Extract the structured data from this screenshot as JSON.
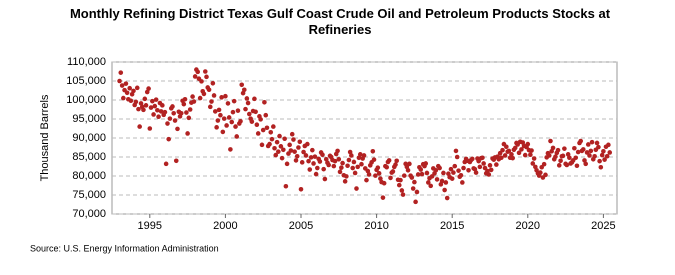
{
  "chart_data": {
    "type": "scatter",
    "title": "Monthly Refining District Texas Gulf Coast Crude Oil and Petroleum Products Stocks at Refineries",
    "y_label": "Thousand Barrels",
    "source": "Source: U.S. Energy Information Administration",
    "xlim": [
      1992.5,
      2025.9
    ],
    "xticks": [
      1995,
      2000,
      2005,
      2010,
      2015,
      2020,
      2025
    ],
    "ylim": [
      70000,
      110000
    ],
    "yticks": [
      {
        "value": 70000,
        "label": "70,000"
      },
      {
        "value": 75000,
        "label": "75,000"
      },
      {
        "value": 80000,
        "label": "80,000"
      },
      {
        "value": 85000,
        "label": "85,000"
      },
      {
        "value": 90000,
        "label": "90,000"
      },
      {
        "value": 95000,
        "label": "95,000"
      },
      {
        "value": 100000,
        "label": "100,000"
      },
      {
        "value": 105000,
        "label": "105,000"
      },
      {
        "value": 110000,
        "label": "110,000"
      }
    ],
    "grid": true,
    "color": "#b22222",
    "x": [
      1993.0,
      1993.08,
      1993.17,
      1993.25,
      1993.33,
      1993.42,
      1993.5,
      1993.58,
      1993.67,
      1993.75,
      1993.83,
      1993.92,
      1994.0,
      1994.08,
      1994.17,
      1994.25,
      1994.33,
      1994.42,
      1994.5,
      1994.58,
      1994.67,
      1994.75,
      1994.83,
      1994.92,
      1995.0,
      1995.08,
      1995.17,
      1995.25,
      1995.33,
      1995.42,
      1995.5,
      1995.58,
      1995.67,
      1995.75,
      1995.83,
      1995.92,
      1996.0,
      1996.08,
      1996.17,
      1996.25,
      1996.33,
      1996.42,
      1996.5,
      1996.58,
      1996.67,
      1996.75,
      1996.83,
      1996.92,
      1997.0,
      1997.08,
      1997.17,
      1997.25,
      1997.33,
      1997.42,
      1997.5,
      1997.58,
      1997.67,
      1997.75,
      1997.83,
      1997.92,
      1998.0,
      1998.08,
      1998.17,
      1998.25,
      1998.33,
      1998.42,
      1998.5,
      1998.58,
      1998.67,
      1998.75,
      1998.83,
      1998.92,
      1999.0,
      1999.08,
      1999.17,
      1999.25,
      1999.33,
      1999.42,
      1999.5,
      1999.58,
      1999.67,
      1999.75,
      1999.83,
      1999.92,
      2000.0,
      2000.08,
      2000.17,
      2000.25,
      2000.33,
      2000.42,
      2000.5,
      2000.58,
      2000.67,
      2000.75,
      2000.83,
      2000.92,
      2001.0,
      2001.08,
      2001.17,
      2001.25,
      2001.33,
      2001.42,
      2001.5,
      2001.58,
      2001.67,
      2001.75,
      2001.83,
      2001.92,
      2002.0,
      2002.08,
      2002.17,
      2002.25,
      2002.33,
      2002.42,
      2002.5,
      2002.58,
      2002.67,
      2002.75,
      2002.83,
      2002.92,
      2003.0,
      2003.08,
      2003.17,
      2003.25,
      2003.33,
      2003.42,
      2003.5,
      2003.58,
      2003.67,
      2003.75,
      2003.83,
      2003.92,
      2004.0,
      2004.08,
      2004.17,
      2004.25,
      2004.33,
      2004.42,
      2004.5,
      2004.58,
      2004.67,
      2004.75,
      2004.83,
      2004.92,
      2005.0,
      2005.08,
      2005.17,
      2005.25,
      2005.33,
      2005.42,
      2005.5,
      2005.58,
      2005.67,
      2005.75,
      2005.83,
      2005.92,
      2006.0,
      2006.08,
      2006.17,
      2006.25,
      2006.33,
      2006.42,
      2006.5,
      2006.58,
      2006.67,
      2006.75,
      2006.83,
      2006.92,
      2007.0,
      2007.08,
      2007.17,
      2007.25,
      2007.33,
      2007.42,
      2007.5,
      2007.58,
      2007.67,
      2007.75,
      2007.83,
      2007.92,
      2008.0,
      2008.08,
      2008.17,
      2008.25,
      2008.33,
      2008.42,
      2008.5,
      2008.58,
      2008.67,
      2008.75,
      2008.83,
      2008.92,
      2009.0,
      2009.08,
      2009.17,
      2009.25,
      2009.33,
      2009.42,
      2009.5,
      2009.58,
      2009.67,
      2009.75,
      2009.83,
      2009.92,
      2010.0,
      2010.08,
      2010.17,
      2010.25,
      2010.33,
      2010.42,
      2010.5,
      2010.58,
      2010.67,
      2010.75,
      2010.83,
      2010.92,
      2011.0,
      2011.08,
      2011.17,
      2011.25,
      2011.33,
      2011.42,
      2011.5,
      2011.58,
      2011.67,
      2011.75,
      2011.83,
      2011.92,
      2012.0,
      2012.08,
      2012.17,
      2012.25,
      2012.33,
      2012.42,
      2012.5,
      2012.58,
      2012.67,
      2012.75,
      2012.83,
      2012.92,
      2013.0,
      2013.08,
      2013.17,
      2013.25,
      2013.33,
      2013.42,
      2013.5,
      2013.58,
      2013.67,
      2013.75,
      2013.83,
      2013.92,
      2014.0,
      2014.08,
      2014.17,
      2014.25,
      2014.33,
      2014.42,
      2014.5,
      2014.58,
      2014.67,
      2014.75,
      2014.83,
      2014.92,
      2015.0,
      2015.08,
      2015.17,
      2015.25,
      2015.33,
      2015.42,
      2015.5,
      2015.58,
      2015.67,
      2015.75,
      2015.83,
      2015.92,
      2016.0,
      2016.08,
      2016.17,
      2016.25,
      2016.33,
      2016.42,
      2016.5,
      2016.58,
      2016.67,
      2016.75,
      2016.83,
      2016.92,
      2017.0,
      2017.08,
      2017.17,
      2017.25,
      2017.33,
      2017.42,
      2017.5,
      2017.58,
      2017.67,
      2017.75,
      2017.83,
      2017.92,
      2018.0,
      2018.08,
      2018.17,
      2018.25,
      2018.33,
      2018.42,
      2018.5,
      2018.58,
      2018.67,
      2018.75,
      2018.83,
      2018.92,
      2019.0,
      2019.08,
      2019.17,
      2019.25,
      2019.33,
      2019.42,
      2019.5,
      2019.58,
      2019.67,
      2019.75,
      2019.83,
      2019.92,
      2020.0,
      2020.08,
      2020.17,
      2020.25,
      2020.33,
      2020.42,
      2020.5,
      2020.58,
      2020.67,
      2020.75,
      2020.83,
      2020.92,
      2021.0,
      2021.08,
      2021.17,
      2021.25,
      2021.33,
      2021.42,
      2021.5,
      2021.58,
      2021.67,
      2021.75,
      2021.83,
      2021.92,
      2022.0,
      2022.08,
      2022.17,
      2022.25,
      2022.33,
      2022.42,
      2022.5,
      2022.58,
      2022.67,
      2022.75,
      2022.83,
      2022.92,
      2023.0,
      2023.08,
      2023.17,
      2023.25,
      2023.33,
      2023.42,
      2023.5,
      2023.58,
      2023.67,
      2023.75,
      2023.83,
      2023.92,
      2024.0,
      2024.08,
      2024.17,
      2024.25,
      2024.33,
      2024.42,
      2024.5,
      2024.58,
      2024.67,
      2024.75,
      2024.83,
      2024.92,
      2025.0,
      2025.08,
      2025.17,
      2025.25,
      2025.33,
      2025.42
    ],
    "values": [
      105000,
      107200,
      103800,
      100500,
      102600,
      104300,
      101900,
      100200,
      103100,
      99800,
      101500,
      102400,
      98700,
      99500,
      103200,
      97600,
      93000,
      99100,
      98200,
      97400,
      100300,
      98600,
      102100,
      103000,
      92500,
      98000,
      99700,
      96200,
      98400,
      100100,
      97300,
      95600,
      99200,
      97000,
      98600,
      96100,
      96800,
      83200,
      93800,
      89700,
      95100,
      97800,
      98300,
      96500,
      94600,
      84000,
      92400,
      96900,
      95700,
      96500,
      99800,
      98900,
      100200,
      96700,
      91200,
      95300,
      97500,
      99300,
      100900,
      99600,
      106200,
      108000,
      107400,
      105600,
      100500,
      104900,
      102300,
      101600,
      107500,
      106100,
      103300,
      102700,
      98200,
      99600,
      104400,
      101200,
      97000,
      92800,
      94600,
      97400,
      96000,
      100700,
      91600,
      95100,
      101000,
      93300,
      99100,
      95400,
      87000,
      94200,
      96800,
      99700,
      93000,
      90400,
      97200,
      93800,
      94400,
      104000,
      101800,
      102700,
      97600,
      100400,
      99200,
      96300,
      95100,
      94300,
      97100,
      100300,
      96900,
      93500,
      91200,
      95700,
      94900,
      88200,
      92100,
      99400,
      96000,
      92700,
      87900,
      88400,
      91500,
      89700,
      93000,
      87300,
      85500,
      88900,
      86400,
      90500,
      87800,
      84700,
      86900,
      89800,
      77300,
      83200,
      85900,
      88200,
      86700,
      91000,
      89600,
      86400,
      84100,
      85200,
      87500,
      89000,
      76500,
      83600,
      86300,
      87900,
      85400,
      88400,
      83900,
      81700,
      84900,
      86800,
      83300,
      85100,
      80500,
      82100,
      84500,
      83800,
      86200,
      85600,
      81800,
      79200,
      84400,
      83500,
      82900,
      85300,
      85000,
      84200,
      82600,
      83900,
      85800,
      86600,
      84400,
      81100,
      82200,
      83400,
      80200,
      78600,
      79900,
      82700,
      84200,
      86300,
      85400,
      82100,
      83700,
      80800,
      76700,
      82400,
      84800,
      85700,
      83100,
      84600,
      85400,
      82000,
      78900,
      81300,
      80400,
      82800,
      83600,
      86500,
      84300,
      80100,
      81600,
      82200,
      80700,
      79300,
      78400,
      74300,
      78100,
      82600,
      82300,
      83700,
      84100,
      79500,
      80900,
      81200,
      82400,
      83000,
      84000,
      79000,
      77600,
      78900,
      76200,
      75100,
      80100,
      83200,
      82400,
      81500,
      83200,
      80100,
      79600,
      76700,
      78400,
      73200,
      75800,
      80400,
      82300,
      81700,
      80500,
      83100,
      82600,
      83300,
      80800,
      78300,
      79400,
      77400,
      79900,
      82000,
      80700,
      81500,
      79100,
      82600,
      82100,
      77800,
      78700,
      80800,
      76300,
      78300,
      74200,
      80600,
      79700,
      81800,
      79300,
      80900,
      82600,
      86600,
      85000,
      81400,
      79800,
      80200,
      78300,
      82100,
      83700,
      84500,
      84000,
      81500,
      83700,
      84200,
      84500,
      82000,
      81800,
      80900,
      84600,
      83900,
      82400,
      84700,
      84800,
      83300,
      82100,
      80700,
      81300,
      80400,
      82800,
      81600,
      84600,
      84300,
      84900,
      83000,
      85100,
      84400,
      86000,
      84800,
      86800,
      88400,
      85400,
      87700,
      86400,
      86600,
      84800,
      85700,
      84700,
      86900,
      87400,
      88700,
      88300,
      86100,
      89000,
      87000,
      88800,
      87900,
      85500,
      87600,
      88400,
      86800,
      85600,
      86700,
      83300,
      84600,
      82400,
      81500,
      80700,
      80100,
      80900,
      82300,
      79600,
      83100,
      80300,
      84900,
      86000,
      85400,
      89200,
      86500,
      87400,
      84400,
      85100,
      86100,
      86800,
      82800,
      84000,
      85200,
      85300,
      87200,
      83200,
      82900,
      85700,
      84800,
      83300,
      83600,
      84100,
      87300,
      84800,
      82700,
      86300,
      88700,
      89200,
      86600,
      87000,
      84100,
      83200,
      86200,
      88300,
      85400,
      86600,
      88900,
      84400,
      85200,
      86900,
      88700,
      87600,
      83900,
      82300,
      85500,
      86500,
      84300,
      87700,
      85200,
      88200,
      86200
    ]
  }
}
